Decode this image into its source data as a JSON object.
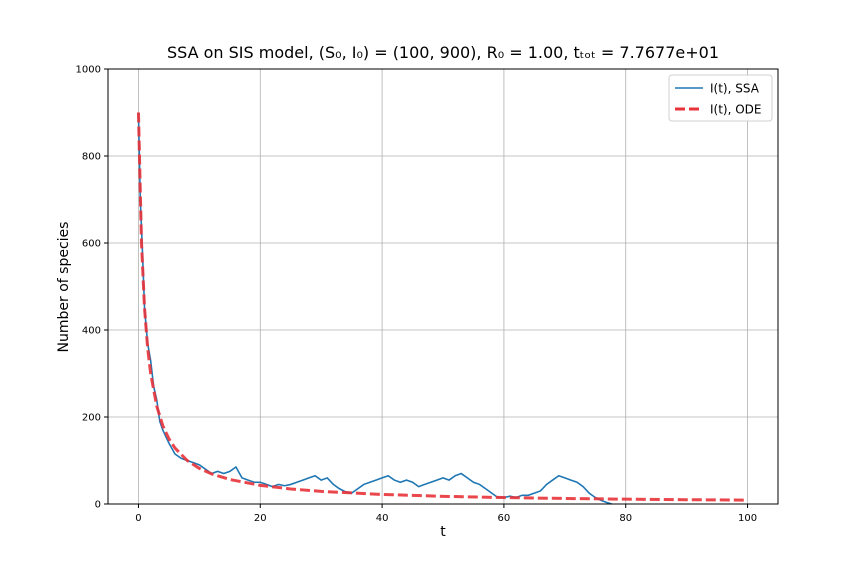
{
  "chart_data": {
    "type": "line",
    "title": "SSA on SIS model, (S₀, I₀) = (100, 900), R₀ = 1.00, tₜₒₜ = 7.7677e+01",
    "xlabel": "t",
    "ylabel": "Number of species",
    "xlim": [
      -5,
      105
    ],
    "ylim": [
      0,
      1000
    ],
    "xticks": [
      0,
      20,
      40,
      60,
      80,
      100
    ],
    "yticks": [
      0,
      200,
      400,
      600,
      800,
      1000
    ],
    "grid": true,
    "legend": "upper right",
    "series": [
      {
        "name": "I(t), SSA",
        "color": "#1f77b4",
        "dashed": false,
        "x": [
          0,
          0.3,
          0.6,
          1,
          1.5,
          2,
          2.5,
          3,
          3.5,
          4,
          5,
          6,
          7,
          8,
          9,
          10,
          11,
          12,
          13,
          14,
          15,
          16,
          17,
          18,
          19,
          20,
          21,
          22,
          23,
          24,
          25,
          26,
          27,
          28,
          29,
          30,
          31,
          32,
          33,
          34,
          35,
          36,
          37,
          38,
          39,
          40,
          41,
          42,
          43,
          44,
          45,
          46,
          47,
          48,
          49,
          50,
          51,
          52,
          53,
          54,
          55,
          56,
          57,
          58,
          59,
          60,
          61,
          62,
          63,
          64,
          65,
          66,
          67,
          68,
          69,
          70,
          71,
          72,
          73,
          74,
          75,
          76,
          77,
          77.68
        ],
        "values": [
          900,
          700,
          600,
          450,
          370,
          330,
          270,
          240,
          190,
          170,
          140,
          115,
          105,
          100,
          95,
          90,
          80,
          70,
          75,
          70,
          75,
          85,
          60,
          55,
          50,
          50,
          45,
          40,
          45,
          42,
          45,
          50,
          55,
          60,
          65,
          55,
          60,
          45,
          35,
          28,
          25,
          35,
          45,
          50,
          55,
          60,
          65,
          55,
          50,
          55,
          50,
          40,
          45,
          50,
          55,
          60,
          55,
          65,
          70,
          60,
          50,
          45,
          35,
          25,
          15,
          15,
          18,
          15,
          20,
          20,
          25,
          30,
          45,
          55,
          65,
          60,
          55,
          50,
          40,
          25,
          15,
          8,
          3,
          0
        ]
      },
      {
        "name": "I(t), ODE",
        "color": "#e8333a",
        "dashed": true,
        "x": [
          0,
          0.5,
          1,
          1.5,
          2,
          3,
          4,
          5,
          6,
          8,
          10,
          12,
          15,
          20,
          25,
          30,
          40,
          50,
          60,
          70,
          80,
          90,
          100
        ],
        "values": [
          900,
          600,
          450,
          360,
          300,
          225,
          180,
          150,
          128.6,
          100,
          81.8,
          69.2,
          56.3,
          42.9,
          34.6,
          29,
          22,
          17.6,
          14.8,
          12.7,
          11.1,
          9.9,
          8.9
        ]
      }
    ]
  }
}
